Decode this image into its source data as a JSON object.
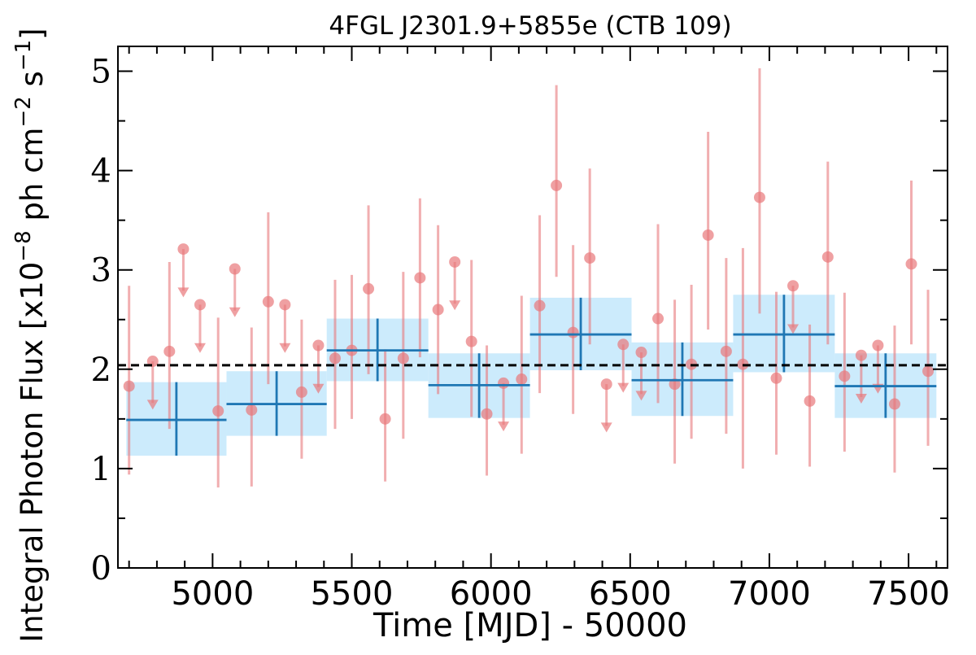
{
  "chart_data": {
    "type": "scatter",
    "title": "4FGL J2301.9+5855e (CTB 109)",
    "xlabel": "Time [MJD] - 50000",
    "ylabel": "Integral Photon Flux [x10^-8 ph cm^-2 s^-1]",
    "ylabel_parts": {
      "prefix": "Integral Photon Flux [x10",
      "exp1": "−8",
      "mid": " ph cm",
      "exp2": "−2",
      "mid2": " s",
      "exp3": "−1",
      "suffix": "]"
    },
    "xlim": [
      4660,
      7640
    ],
    "ylim": [
      0,
      5.25
    ],
    "x_ticks": [
      5000,
      5500,
      6000,
      6500,
      7000,
      7500
    ],
    "x_tick_labels": [
      "5000",
      "5500",
      "6000",
      "6500",
      "7000",
      "7500"
    ],
    "y_ticks": [
      0,
      1,
      2,
      3,
      4,
      5
    ],
    "y_tick_labels": [
      "0",
      "1",
      "2",
      "3",
      "4",
      "5"
    ],
    "reference_line": {
      "y": 2.04,
      "style": "dashed",
      "color": "#000000"
    },
    "colors": {
      "short_bins": "#e8787b",
      "long_bins": "#1f77b4",
      "long_bins_fill": "#bfe6fb"
    },
    "series": [
      {
        "kind": "short_bins",
        "detections": [
          {
            "x": 4700,
            "y": 1.83,
            "lo": 0.94,
            "hi": 2.84
          },
          {
            "x": 4845,
            "y": 2.18,
            "lo": 1.4,
            "hi": 3.08
          },
          {
            "x": 5020,
            "y": 1.58,
            "lo": 0.81,
            "hi": 2.52
          },
          {
            "x": 5140,
            "y": 1.59,
            "lo": 0.82,
            "hi": 2.42
          },
          {
            "x": 5200,
            "y": 2.68,
            "lo": 1.85,
            "hi": 3.58
          },
          {
            "x": 5320,
            "y": 1.77,
            "lo": 1.1,
            "hi": 2.5
          },
          {
            "x": 5440,
            "y": 2.11,
            "lo": 1.4,
            "hi": 2.9
          },
          {
            "x": 5500,
            "y": 2.19,
            "lo": 1.5,
            "hi": 2.95
          },
          {
            "x": 5560,
            "y": 2.81,
            "lo": 1.95,
            "hi": 3.65
          },
          {
            "x": 5620,
            "y": 1.5,
            "lo": 0.87,
            "hi": 2.2
          },
          {
            "x": 5685,
            "y": 2.11,
            "lo": 1.3,
            "hi": 2.98
          },
          {
            "x": 5745,
            "y": 2.92,
            "lo": 2.12,
            "hi": 3.72
          },
          {
            "x": 5810,
            "y": 2.6,
            "lo": 1.75,
            "hi": 3.45
          },
          {
            "x": 5930,
            "y": 2.28,
            "lo": 1.52,
            "hi": 3.1
          },
          {
            "x": 5985,
            "y": 1.55,
            "lo": 0.93,
            "hi": 2.24
          },
          {
            "x": 6110,
            "y": 1.9,
            "lo": 1.15,
            "hi": 2.74
          },
          {
            "x": 6175,
            "y": 2.64,
            "lo": 1.76,
            "hi": 3.55
          },
          {
            "x": 6235,
            "y": 3.85,
            "lo": 2.93,
            "hi": 4.86
          },
          {
            "x": 6295,
            "y": 2.37,
            "lo": 1.55,
            "hi": 3.25
          },
          {
            "x": 6355,
            "y": 3.12,
            "lo": 2.25,
            "hi": 4.02
          },
          {
            "x": 6600,
            "y": 2.51,
            "lo": 1.66,
            "hi": 3.46
          },
          {
            "x": 6660,
            "y": 1.85,
            "lo": 1.05,
            "hi": 2.7
          },
          {
            "x": 6720,
            "y": 2.05,
            "lo": 1.3,
            "hi": 2.85
          },
          {
            "x": 6780,
            "y": 3.35,
            "lo": 2.4,
            "hi": 4.39
          },
          {
            "x": 6845,
            "y": 2.18,
            "lo": 1.35,
            "hi": 3.12
          },
          {
            "x": 6905,
            "y": 2.05,
            "lo": 1.0,
            "hi": 3.22
          },
          {
            "x": 6965,
            "y": 3.73,
            "lo": 2.56,
            "hi": 5.03
          },
          {
            "x": 7025,
            "y": 1.91,
            "lo": 1.14,
            "hi": 2.78
          },
          {
            "x": 7145,
            "y": 1.68,
            "lo": 1.02,
            "hi": 2.45
          },
          {
            "x": 7210,
            "y": 3.13,
            "lo": 2.25,
            "hi": 4.09
          },
          {
            "x": 7270,
            "y": 1.93,
            "lo": 1.17,
            "hi": 2.77
          },
          {
            "x": 7450,
            "y": 1.65,
            "lo": 0.96,
            "hi": 2.44
          },
          {
            "x": 7510,
            "y": 3.06,
            "lo": 2.25,
            "hi": 3.9
          },
          {
            "x": 7570,
            "y": 1.98,
            "lo": 1.23,
            "hi": 2.8
          }
        ],
        "upper_limits": [
          {
            "x": 4785,
            "y": 2.08
          },
          {
            "x": 4895,
            "y": 3.21
          },
          {
            "x": 4955,
            "y": 2.65
          },
          {
            "x": 5080,
            "y": 3.01
          },
          {
            "x": 5260,
            "y": 2.65
          },
          {
            "x": 5380,
            "y": 2.24
          },
          {
            "x": 5870,
            "y": 3.08
          },
          {
            "x": 6045,
            "y": 1.86
          },
          {
            "x": 6415,
            "y": 1.85
          },
          {
            "x": 6475,
            "y": 2.25
          },
          {
            "x": 6540,
            "y": 2.17
          },
          {
            "x": 7085,
            "y": 2.84
          },
          {
            "x": 7330,
            "y": 2.14
          },
          {
            "x": 7390,
            "y": 2.24
          }
        ]
      },
      {
        "kind": "long_bins",
        "bins": [
          {
            "x0": 4690,
            "x1": 5050,
            "y": 1.49,
            "lo": 1.13,
            "hi": 1.87
          },
          {
            "x0": 5050,
            "x1": 5410,
            "y": 1.65,
            "lo": 1.33,
            "hi": 1.98
          },
          {
            "x0": 5410,
            "x1": 5775,
            "y": 2.19,
            "lo": 1.88,
            "hi": 2.51
          },
          {
            "x0": 5775,
            "x1": 6140,
            "y": 1.84,
            "lo": 1.51,
            "hi": 2.16
          },
          {
            "x0": 6140,
            "x1": 6505,
            "y": 2.35,
            "lo": 1.99,
            "hi": 2.72
          },
          {
            "x0": 6505,
            "x1": 6870,
            "y": 1.89,
            "lo": 1.53,
            "hi": 2.27
          },
          {
            "x0": 6870,
            "x1": 7235,
            "y": 2.35,
            "lo": 1.97,
            "hi": 2.75
          },
          {
            "x0": 7235,
            "x1": 7600,
            "y": 1.83,
            "lo": 1.51,
            "hi": 2.16
          }
        ]
      }
    ]
  }
}
